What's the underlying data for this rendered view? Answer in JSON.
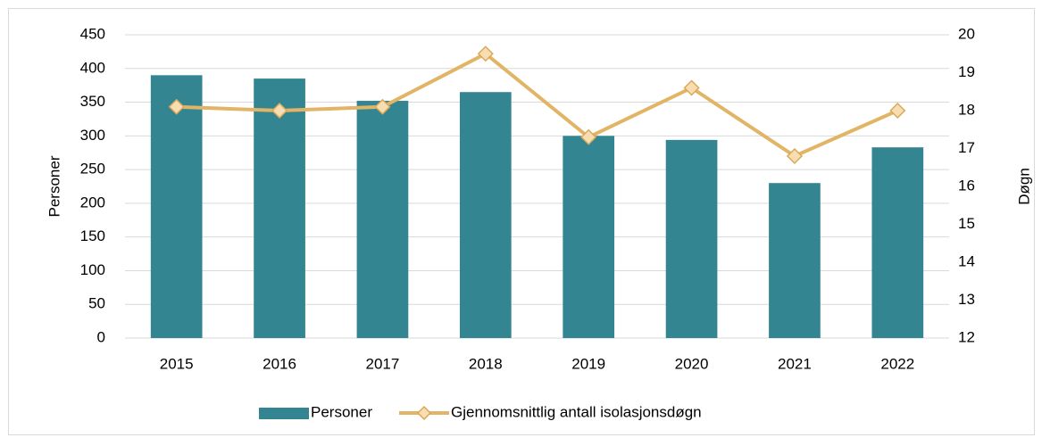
{
  "chart_data": {
    "type": "bar_line",
    "categories": [
      "2015",
      "2016",
      "2017",
      "2018",
      "2019",
      "2020",
      "2021",
      "2022"
    ],
    "series": [
      {
        "name": "Personer",
        "type": "bar",
        "color": "#338591",
        "values": [
          390,
          385,
          352,
          365,
          300,
          294,
          230,
          283
        ]
      },
      {
        "name": "Gjennomsnittlig antall isolasjonsdøgn",
        "type": "line",
        "axis": "y2",
        "color": "#E2B466",
        "marker_fill": "#F7DDB0",
        "marker_stroke": "#D9A85A",
        "values": [
          18.1,
          18.0,
          18.1,
          19.5,
          17.3,
          18.6,
          16.8,
          18.0
        ]
      }
    ],
    "ylabel": "Personer",
    "y2label": "Døgn",
    "ylim": [
      0,
      450
    ],
    "yticks": [
      0,
      50,
      100,
      150,
      200,
      250,
      300,
      350,
      400,
      450
    ],
    "y2lim": [
      12,
      20
    ],
    "y2ticks": [
      12,
      13,
      14,
      15,
      16,
      17,
      18,
      19,
      20
    ],
    "grid": true,
    "legend": "bottom"
  }
}
